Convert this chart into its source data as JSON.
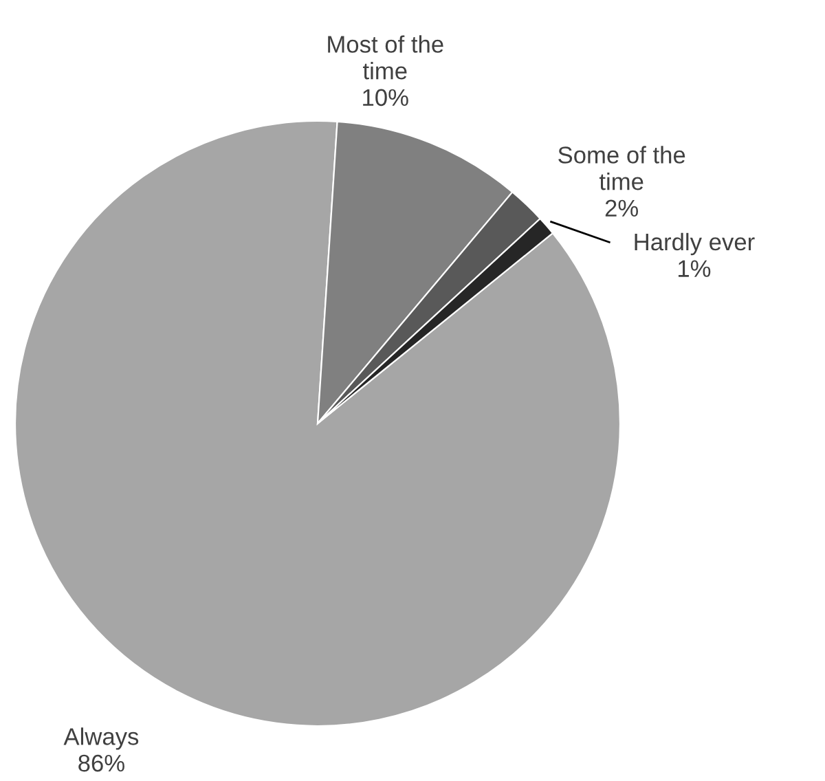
{
  "chart_data": {
    "type": "pie",
    "categories": [
      "Always",
      "Most of the\ntime",
      "Some of the\ntime",
      "Hardly ever"
    ],
    "values": [
      86,
      10,
      2,
      1
    ],
    "value_labels": [
      "86%",
      "10%",
      "2%",
      "1%"
    ],
    "colors": [
      "#a6a6a6",
      "#808080",
      "#595959",
      "#262626"
    ]
  }
}
